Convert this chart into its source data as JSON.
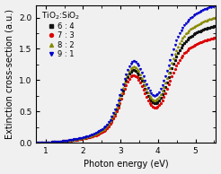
{
  "title": "",
  "xlabel": "Photon energy (eV)",
  "ylabel": "Extinction cross-section (a.u.)",
  "xlim": [
    0.75,
    5.55
  ],
  "ylim": [
    0.0,
    2.2
  ],
  "xticks": [
    1,
    2,
    3,
    4,
    5
  ],
  "yticks": [
    0.0,
    0.5,
    1.0,
    1.5,
    2.0
  ],
  "legend_title": "TiO$_2$:SiO$_2$",
  "series": [
    {
      "label": "6 : 4",
      "color": "#111111",
      "marker": "s",
      "amplitude": 1.0,
      "shift": 0.0
    },
    {
      "label": "7 : 3",
      "color": "#dd0000",
      "marker": "o",
      "amplitude": 0.92,
      "shift": -0.04
    },
    {
      "label": "8 : 2",
      "color": "#888800",
      "marker": "^",
      "amplitude": 1.06,
      "shift": 0.02
    },
    {
      "label": "9 : 1",
      "color": "#0000cc",
      "marker": "v",
      "amplitude": 1.14,
      "shift": 0.06
    }
  ],
  "figsize": [
    2.46,
    1.94
  ],
  "dpi": 100,
  "background_color": "#f0f0f0"
}
